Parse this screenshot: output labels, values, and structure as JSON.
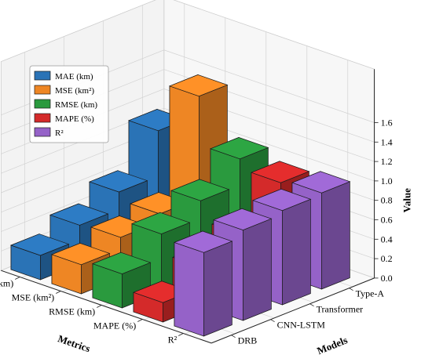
{
  "chart_data": {
    "type": "bar",
    "title": "",
    "models": [
      "DRB",
      "CNN-LSTM",
      "Transformer",
      "Type-A"
    ],
    "metrics": [
      "MAE (km)",
      "MSE (km²)",
      "RMSE (km)",
      "MAPE (%)",
      "R²"
    ],
    "series": [
      {
        "name": "MAE (km)",
        "values": [
          0.25,
          0.4,
          0.58,
          1.05
        ]
      },
      {
        "name": "MSE (km²)",
        "values": [
          0.3,
          0.42,
          0.5,
          1.55
        ]
      },
      {
        "name": "RMSE (km)",
        "values": [
          0.35,
          0.6,
          0.78,
          1.05
        ]
      },
      {
        "name": "MAPE (%)",
        "values": [
          0.2,
          0.4,
          0.58,
          0.95
        ]
      },
      {
        "name": "R²",
        "values": [
          0.86,
          0.93,
          0.97,
          0.99
        ]
      }
    ],
    "colors": [
      "#2a73b6",
      "#ee8624",
      "#2a9a3e",
      "#d42a2a",
      "#9562c8"
    ],
    "xlabel": "Metrics",
    "ylabel": "Models",
    "zlabel": "Value",
    "zlim": [
      0,
      1.6
    ],
    "zticks": [
      "0.0",
      "0.2",
      "0.4",
      "0.6",
      "0.8",
      "1.0",
      "1.2",
      "1.4",
      "1.6"
    ],
    "grid": true,
    "legend_position": "upper-left"
  }
}
